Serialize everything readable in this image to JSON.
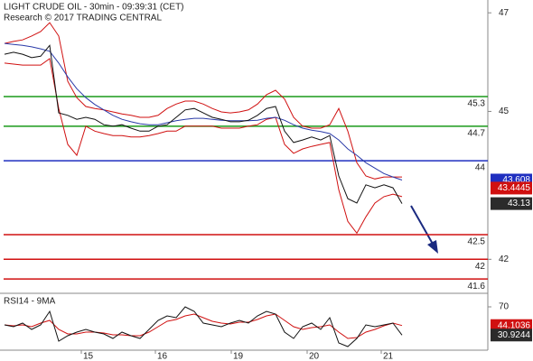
{
  "chart_data": {
    "type": "line",
    "title": "LIGHT CRUDE OIL - 30min - 09:39:31 (CET)",
    "subtitle": "Research © 2017 TRADING CENTRAL",
    "x": [
      0,
      2,
      4,
      6,
      8,
      10,
      12,
      14,
      16,
      18,
      20,
      22,
      24,
      26,
      28,
      30,
      32,
      34,
      36,
      38,
      40,
      42,
      44,
      46,
      48,
      50,
      52,
      54,
      56,
      58,
      60,
      62,
      64,
      66,
      68,
      70,
      72,
      74,
      76,
      78,
      80,
      82,
      84,
      86,
      88
    ],
    "xlim": [
      -1,
      107
    ],
    "xticks": [
      {
        "value": 17,
        "label": "15"
      },
      {
        "value": 33.4,
        "label": "16"
      },
      {
        "value": 50.2,
        "label": "19"
      },
      {
        "value": 67,
        "label": "20"
      },
      {
        "value": 83.4,
        "label": "21"
      }
    ],
    "ylim": [
      41.31,
      47.26
    ],
    "yticks": [
      42,
      45,
      47
    ],
    "series": [
      {
        "color": "#d01010",
        "values": [
          46.38,
          46.42,
          46.45,
          46.53,
          46.62,
          46.8,
          46.53,
          45.61,
          45.28,
          45.1,
          45.06,
          45.03,
          44.99,
          44.95,
          44.92,
          44.88,
          44.88,
          44.92,
          45.06,
          45.15,
          45.21,
          45.21,
          45.15,
          45.06,
          44.99,
          44.97,
          44.99,
          45.03,
          45.15,
          45.34,
          45.43,
          45.25,
          44.88,
          44.7,
          44.66,
          44.66,
          44.73,
          45.06,
          44.6,
          43.96,
          43.69,
          43.63,
          43.67,
          43.67,
          43.67
        ]
      },
      {
        "color": "#d01010",
        "values": [
          45.98,
          45.96,
          45.94,
          45.94,
          45.94,
          46.07,
          45.06,
          44.33,
          44.11,
          44.7,
          44.6,
          44.55,
          44.51,
          44.51,
          44.48,
          44.48,
          44.51,
          44.55,
          44.6,
          44.6,
          44.7,
          44.7,
          44.7,
          44.7,
          44.66,
          44.66,
          44.66,
          44.7,
          44.73,
          44.84,
          44.88,
          44.33,
          44.15,
          44.24,
          44.29,
          44.33,
          44.37,
          43.41,
          42.77,
          42.53,
          42.86,
          43.14,
          43.27,
          43.32,
          43.27
        ]
      },
      {
        "color": "#2a3aa8",
        "values": [
          46.38,
          46.36,
          46.34,
          46.31,
          46.27,
          46.22,
          45.98,
          45.7,
          45.46,
          45.28,
          45.14,
          45.03,
          44.92,
          44.84,
          44.79,
          44.75,
          44.73,
          44.73,
          44.77,
          44.81,
          44.84,
          44.86,
          44.86,
          44.84,
          44.82,
          44.81,
          44.81,
          44.81,
          44.82,
          44.86,
          44.88,
          44.82,
          44.73,
          44.66,
          44.62,
          44.59,
          44.55,
          44.42,
          44.24,
          44.11,
          43.96,
          43.85,
          43.74,
          43.67,
          43.608
        ]
      },
      {
        "color": "#111111",
        "values": [
          46.16,
          46.2,
          46.16,
          46.09,
          46.12,
          46.34,
          44.97,
          44.92,
          44.84,
          44.88,
          44.84,
          44.73,
          44.7,
          44.73,
          44.66,
          44.6,
          44.6,
          44.7,
          44.73,
          44.88,
          45.03,
          45.06,
          44.97,
          44.88,
          44.84,
          44.79,
          44.79,
          44.82,
          44.92,
          45.06,
          45.1,
          44.6,
          44.37,
          44.42,
          44.48,
          44.42,
          44.51,
          43.69,
          43.23,
          43.14,
          43.51,
          43.45,
          43.51,
          43.45,
          43.13
        ]
      }
    ],
    "levels": [
      {
        "value": 45.3,
        "color": "#1a9a1a"
      },
      {
        "value": 44.7,
        "color": "#1a9a1a"
      },
      {
        "value": 44,
        "color": "#1f2fc0"
      },
      {
        "value": 42.5,
        "color": "#d01010"
      },
      {
        "value": 42,
        "color": "#d01010"
      },
      {
        "value": 41.6,
        "color": "#d01010"
      }
    ],
    "price_tags": [
      {
        "value": 43.608,
        "label": "43.608",
        "color": "#1f2fc0"
      },
      {
        "value": 43.4445,
        "label": "43.4445",
        "color": "#d01010"
      },
      {
        "value": 43.13,
        "label": "43.13",
        "color": "#2b2b2b"
      }
    ],
    "rsi": {
      "label": "RSI14 - 9MA",
      "ylim": [
        10,
        87.5
      ],
      "yticks": [
        70
      ],
      "series": [
        {
          "color": "#d01010",
          "values": [
            45,
            43.75,
            45,
            42.5,
            47.5,
            51.25,
            38.75,
            32.5,
            32.5,
            35,
            35,
            33.75,
            31.25,
            31.25,
            30,
            30,
            35,
            42.5,
            50,
            52.5,
            57.5,
            60,
            55,
            50,
            47.5,
            46.25,
            48.75,
            48.75,
            52.5,
            57.5,
            60,
            51.25,
            42.5,
            38.75,
            41.25,
            42.5,
            45,
            35,
            26.25,
            27.5,
            35,
            38.75,
            43.75,
            47.5,
            44.1036
          ]
        },
        {
          "color": "#111111",
          "values": [
            45,
            42.5,
            47.5,
            38.75,
            45,
            63.75,
            22.5,
            30,
            35,
            38.75,
            35,
            32.5,
            26.25,
            35,
            30,
            26.25,
            38.75,
            51.25,
            57.5,
            55,
            70,
            63.75,
            47.5,
            45,
            42.5,
            47.5,
            51.25,
            47.5,
            57.5,
            63.75,
            60,
            35,
            26.25,
            42.5,
            47.5,
            38.75,
            55,
            20,
            15,
            26.25,
            45,
            42.5,
            45,
            47.5,
            30.9244
          ]
        }
      ],
      "price_tags": [
        {
          "value": 44.1036,
          "label": "44.1036",
          "color": "#d01010"
        },
        {
          "value": 30.9244,
          "label": "30.9244",
          "color": "#2b2b2b"
        }
      ]
    }
  }
}
